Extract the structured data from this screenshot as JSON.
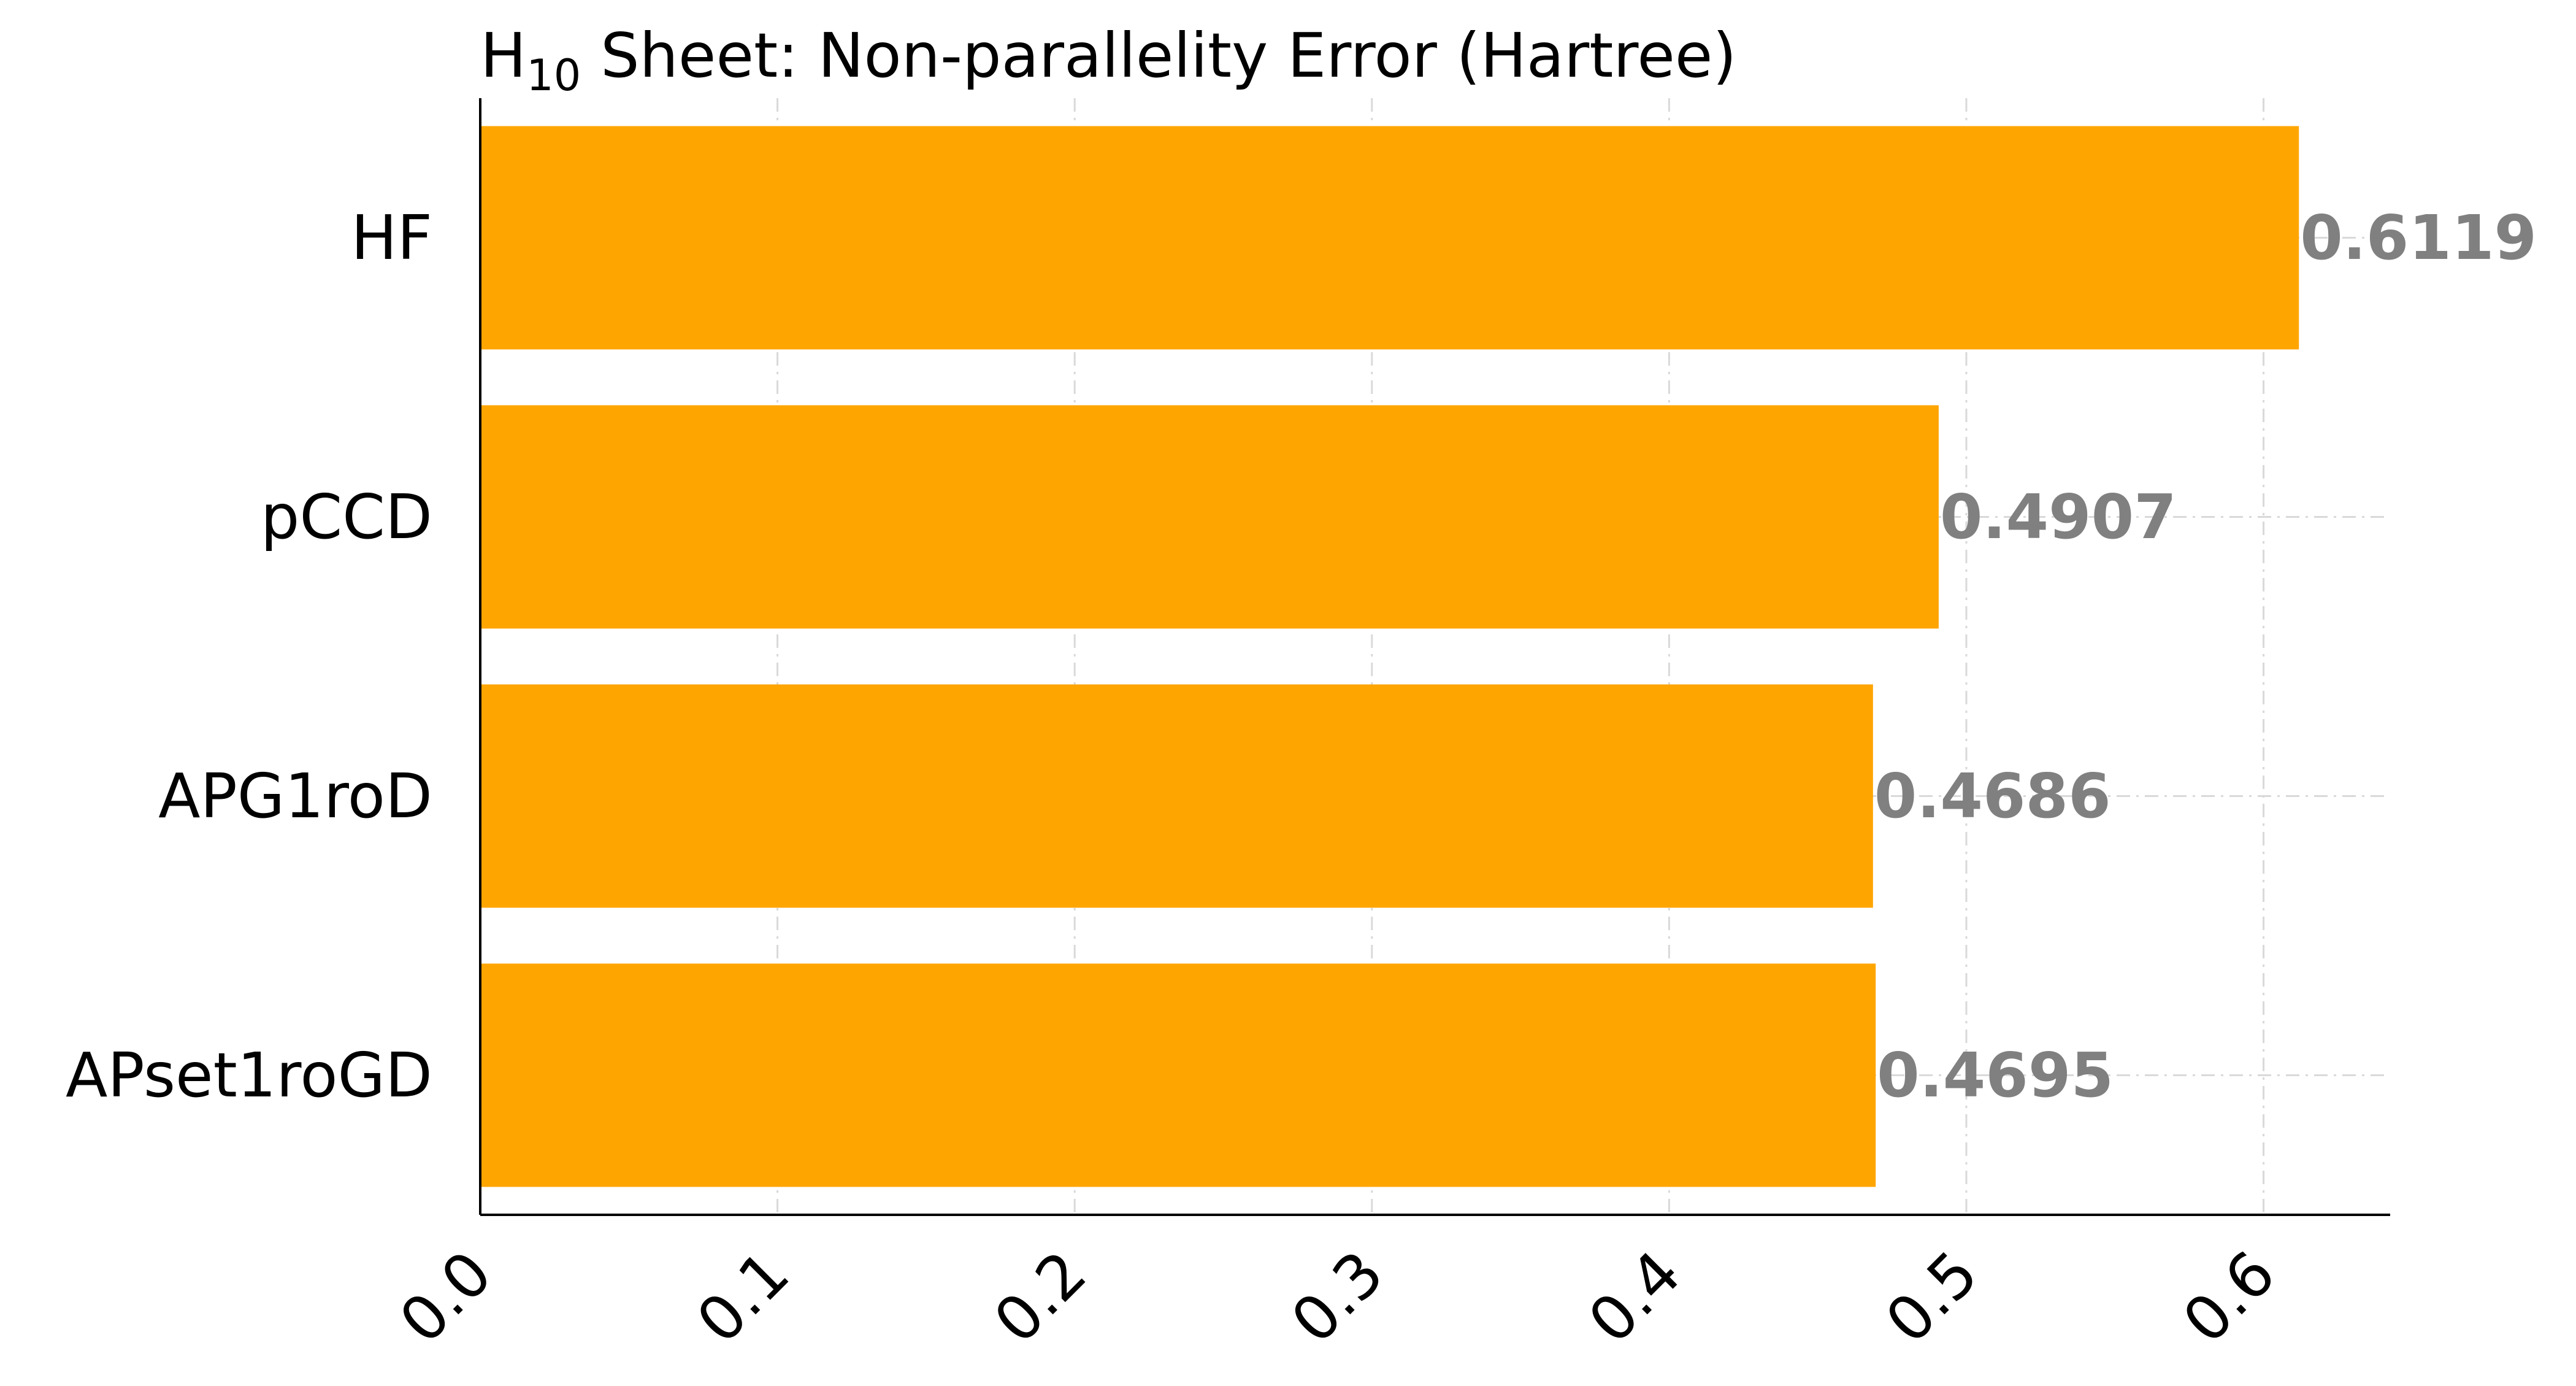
{
  "chart_data": {
    "type": "bar",
    "orientation": "horizontal",
    "title": {
      "main": "H",
      "subscript": "10",
      "rest": " Sheet: Non-parallelity Error (Hartree)"
    },
    "xlabel": "",
    "ylabel": "",
    "categories": [
      "HF",
      "pCCD",
      "APG1roD",
      "APset1roGD"
    ],
    "values": [
      0.6119,
      0.4907,
      0.4686,
      0.4695
    ],
    "value_labels": [
      "0.6119",
      "0.4907",
      "0.4686",
      "0.4695"
    ],
    "xlim": [
      0,
      0.6426
    ],
    "xticks": [
      0.0,
      0.1,
      0.2,
      0.3,
      0.4,
      0.5,
      0.6
    ],
    "xtick_labels": [
      "0.0",
      "0.1",
      "0.2",
      "0.3",
      "0.4",
      "0.5",
      "0.6"
    ],
    "xtick_rotation_deg": 45,
    "grid": true,
    "grid_style": "dash-dot",
    "legend": "none",
    "colors": {
      "bar": "#FFA500",
      "value_label": "#808080",
      "grid": "#d9d9d9",
      "axis": "#000000"
    }
  }
}
